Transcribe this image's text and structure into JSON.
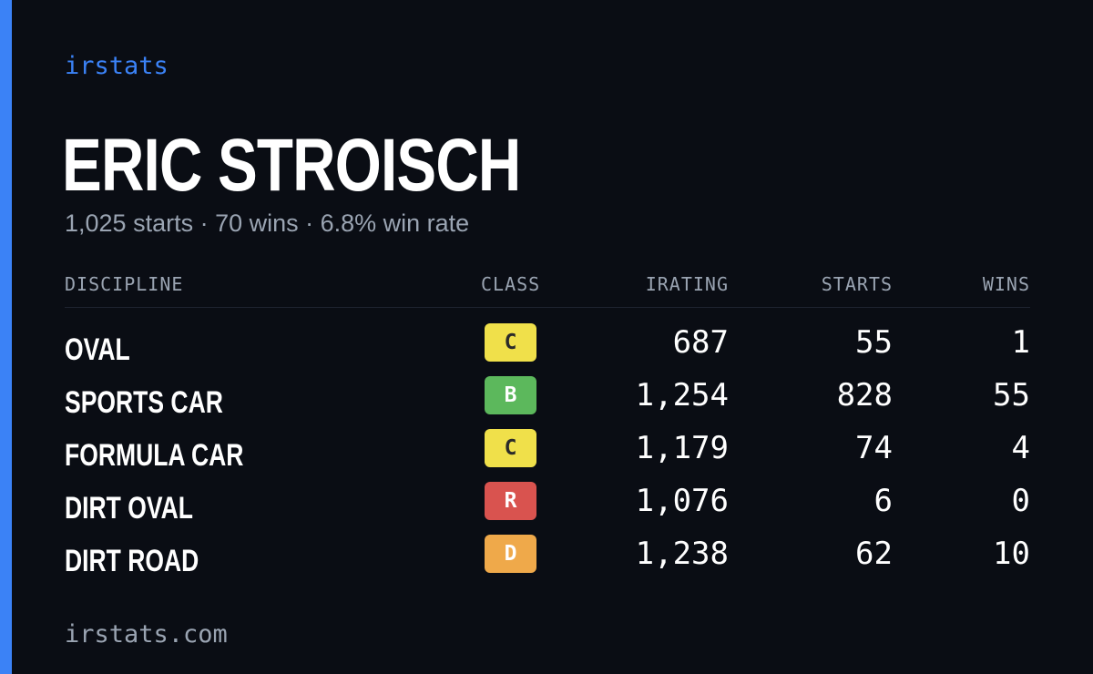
{
  "brand": "irstats",
  "player": {
    "name": "ERIC STROISCH",
    "summary": "1,025 starts · 70 wins · 6.8% win rate"
  },
  "table": {
    "headers": {
      "discipline": "DISCIPLINE",
      "class": "CLASS",
      "irating": "IRATING",
      "starts": "STARTS",
      "wins": "WINS"
    },
    "rows": [
      {
        "discipline": "OVAL",
        "class": "C",
        "irating": "687",
        "starts": "55",
        "wins": "1"
      },
      {
        "discipline": "SPORTS CAR",
        "class": "B",
        "irating": "1,254",
        "starts": "828",
        "wins": "55"
      },
      {
        "discipline": "FORMULA CAR",
        "class": "C",
        "irating": "1,179",
        "starts": "74",
        "wins": "4"
      },
      {
        "discipline": "DIRT OVAL",
        "class": "R",
        "irating": "1,076",
        "starts": "6",
        "wins": "0"
      },
      {
        "discipline": "DIRT ROAD",
        "class": "D",
        "irating": "1,238",
        "starts": "62",
        "wins": "10"
      }
    ]
  },
  "footer": {
    "domain": "irstats.com"
  },
  "colors": {
    "background": "#0a0d14",
    "accent": "#3b82f6",
    "muted_text": "#9aa4b2",
    "class_colors": {
      "R": {
        "bg": "#d9534f",
        "fg": "#ffffff"
      },
      "D": {
        "bg": "#efa94a",
        "fg": "#ffffff"
      },
      "C": {
        "bg": "#f0e04a",
        "fg": "#2a2a2a"
      },
      "B": {
        "bg": "#5cb85c",
        "fg": "#ffffff"
      }
    }
  }
}
